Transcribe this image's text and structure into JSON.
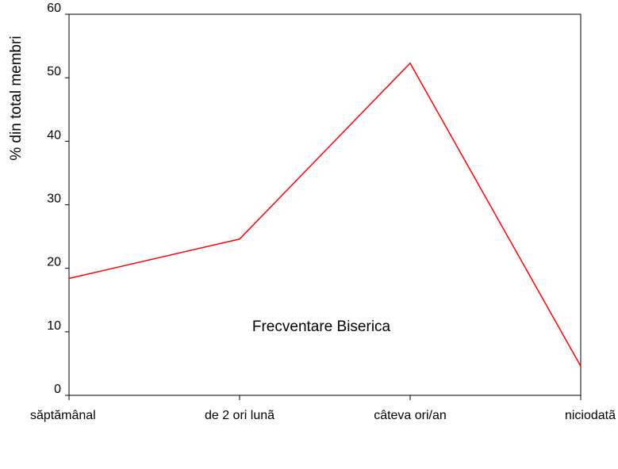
{
  "chart_data": {
    "type": "line",
    "categories": [
      "săptămânal",
      "de 2 ori lunã",
      "câteva ori/an",
      "niciodatã"
    ],
    "values": [
      18.4,
      24.6,
      52.3,
      4.6
    ],
    "xlabel": "Frecventare Biserica",
    "ylabel": "% din total membri",
    "ylim": [
      0,
      60
    ],
    "yticks": [
      0,
      10,
      20,
      30,
      40,
      50,
      60
    ],
    "grid": false,
    "line_color": "#ff0000"
  }
}
